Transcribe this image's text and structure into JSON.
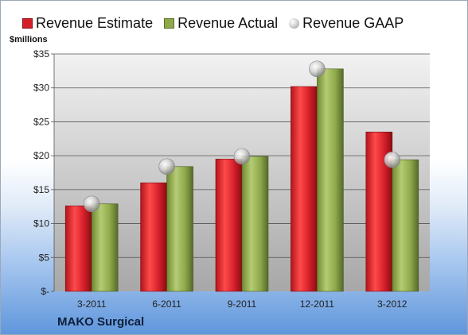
{
  "legend": {
    "estimate": "Revenue Estimate",
    "actual": "Revenue Actual",
    "gaap": "Revenue GAAP"
  },
  "unit_label": "$millions",
  "company": "MAKO Surgical",
  "colors": {
    "estimate": "#d41f2a",
    "actual": "#8ea84a",
    "gaap": "#c8c8c8"
  },
  "chart_data": {
    "type": "bar",
    "categories": [
      "3-2011",
      "6-2011",
      "9-2011",
      "12-2011",
      "3-2012"
    ],
    "series": [
      {
        "name": "Revenue Estimate",
        "values": [
          12.6,
          16.0,
          19.5,
          30.2,
          23.5
        ]
      },
      {
        "name": "Revenue Actual",
        "values": [
          12.9,
          18.4,
          19.9,
          32.8,
          19.4
        ]
      },
      {
        "name": "Revenue GAAP",
        "values": [
          12.9,
          18.4,
          19.9,
          32.8,
          19.4
        ]
      }
    ],
    "y_ticks": [
      "$-",
      "$5",
      "$10",
      "$15",
      "$20",
      "$25",
      "$30",
      "$35"
    ],
    "ylim": [
      0,
      35
    ],
    "grid": true,
    "legend_position": "top"
  }
}
